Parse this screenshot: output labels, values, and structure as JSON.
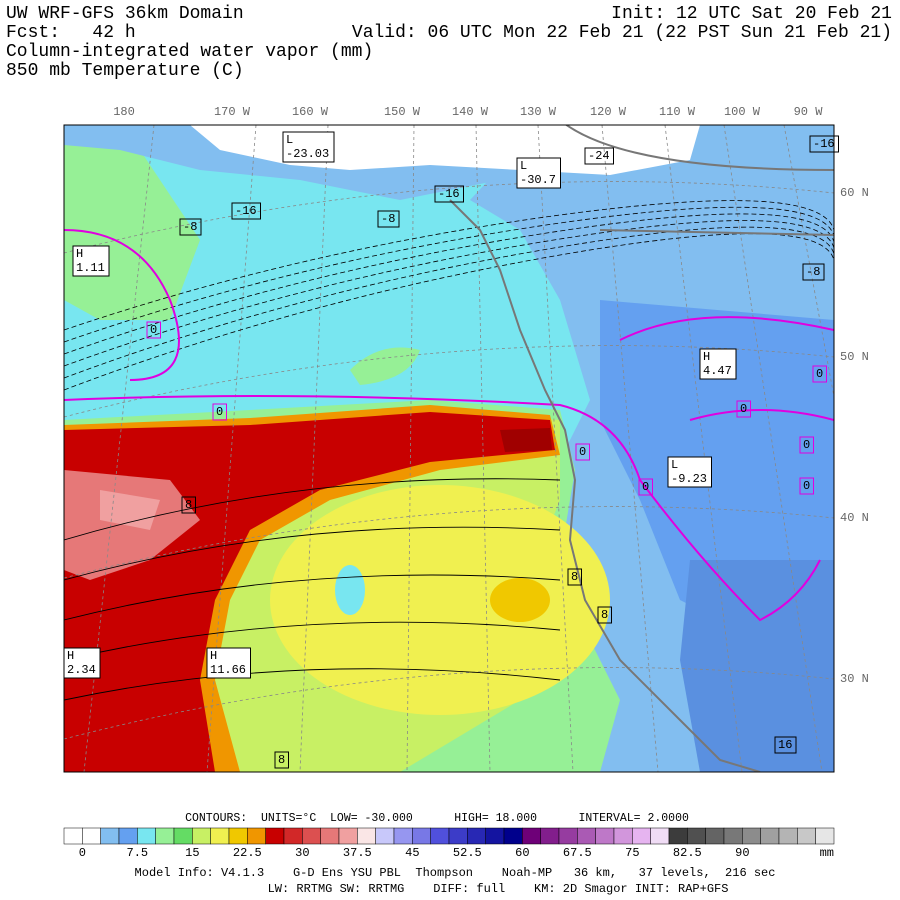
{
  "header": {
    "title": "UW WRF-GFS 36km Domain",
    "init": "Init: 12 UTC Sat 20 Feb 21",
    "fcst": "Fcst:   42 h",
    "valid": "Valid: 06 UTC Mon 22 Feb 21 (22 PST Sun 21 Feb 21)",
    "field1": "Column-integrated water vapor (mm)",
    "field2": "850 mb Temperature (C)"
  },
  "lon_labels": [
    "180",
    "170 W",
    "160 W",
    "150 W",
    "140 W",
    "130 W",
    "120 W",
    "110 W",
    "100 W",
    "90 W"
  ],
  "lat_labels": [
    "60 N",
    "50 N",
    "40 N",
    "30 N"
  ],
  "map_labels": [
    {
      "lines": [
        "L",
        "-23.03"
      ]
    },
    {
      "lines": [
        "-24"
      ]
    },
    {
      "lines": [
        "L",
        "-30.7"
      ]
    },
    {
      "lines": [
        "-16"
      ]
    },
    {
      "lines": [
        "-16"
      ]
    },
    {
      "lines": [
        "-16"
      ]
    },
    {
      "lines": [
        "-8"
      ]
    },
    {
      "lines": [
        "-8"
      ]
    },
    {
      "lines": [
        "H",
        "1.11"
      ]
    },
    {
      "lines": [
        "-8"
      ]
    },
    {
      "lines": [
        "0"
      ]
    },
    {
      "lines": [
        "0"
      ]
    },
    {
      "lines": [
        "H",
        "4.47"
      ]
    },
    {
      "lines": [
        "0"
      ]
    },
    {
      "lines": [
        "0"
      ]
    },
    {
      "lines": [
        "0"
      ]
    },
    {
      "lines": [
        "0"
      ]
    },
    {
      "lines": [
        "L",
        "-9.23"
      ]
    },
    {
      "lines": [
        "0"
      ]
    },
    {
      "lines": [
        "0"
      ]
    },
    {
      "lines": [
        "8"
      ]
    },
    {
      "lines": [
        "8"
      ]
    },
    {
      "lines": [
        "8"
      ]
    },
    {
      "lines": [
        "H",
        "2.34"
      ]
    },
    {
      "lines": [
        "H",
        "11.66"
      ]
    },
    {
      "lines": [
        "16"
      ]
    },
    {
      "lines": [
        "8"
      ]
    }
  ],
  "colorbar": {
    "contours": "CONTOURS:  UNITS=°C  LOW= -30.000      HIGH= 18.000      INTERVAL= 2.0000",
    "labels": [
      "0",
      "7.5",
      "15",
      "22.5",
      "30",
      "37.5",
      "45",
      "52.5",
      "60",
      "67.5",
      "75",
      "82.5",
      "90"
    ],
    "unit": "mm",
    "colors": [
      "#ffffff",
      "#ffffff",
      "#82bef0",
      "#64a0f0",
      "#78e6f0",
      "#96f096",
      "#64dc64",
      "#c8f064",
      "#f0f050",
      "#f0c800",
      "#f09600",
      "#c80000",
      "#d22828",
      "#dc5050",
      "#e67878",
      "#f0a0a0",
      "#fae6e6",
      "#c8c8fa",
      "#9696f0",
      "#7878e6",
      "#5050dc",
      "#3c3cc8",
      "#2828b4",
      "#1414a0",
      "#00008c",
      "#6e0078",
      "#821e8c",
      "#963ca0",
      "#aa5ab4",
      "#be78c8",
      "#d296dc",
      "#e6b4f0",
      "#f0dcf5",
      "#3c3c3c",
      "#505050",
      "#646464",
      "#787878",
      "#8c8c8c",
      "#a0a0a0",
      "#b4b4b4",
      "#c8c8c8",
      "#e6e6e6"
    ]
  },
  "footer": {
    "line1": "Model Info: V4.1.3    G-D Ens YSU PBL  Thompson    Noah-MP   36 km,   37 levels,  216 sec",
    "line2": "LW: RRTMG SW: RRTMG    DIFF: full    KM: 2D Smagor INIT: RAP+GFS"
  }
}
